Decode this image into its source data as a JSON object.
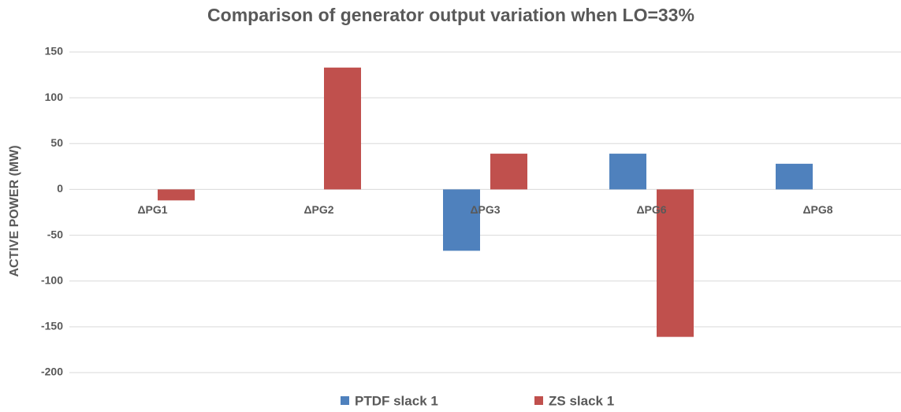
{
  "chart_data": {
    "type": "bar",
    "title": "Comparison of generator output variation when LO=33%",
    "y_label": "ACTIVE POWER (MW)",
    "categories": [
      "ΔPG1",
      "ΔPG2",
      "ΔPG3",
      "ΔPG6",
      "ΔPG8"
    ],
    "series": [
      {
        "name": "PTDF slack 1",
        "color": "#4f81bd",
        "values": [
          0,
          0,
          -67,
          39,
          28
        ]
      },
      {
        "name": "ZS slack 1",
        "color": "#c0504d",
        "values": [
          -12,
          133,
          39,
          -161,
          0
        ]
      }
    ],
    "ylim": [
      -200,
      150
    ],
    "yticks": [
      -200,
      -150,
      -100,
      -50,
      0,
      50,
      100,
      150
    ],
    "grid": true,
    "legend": "bottom"
  }
}
